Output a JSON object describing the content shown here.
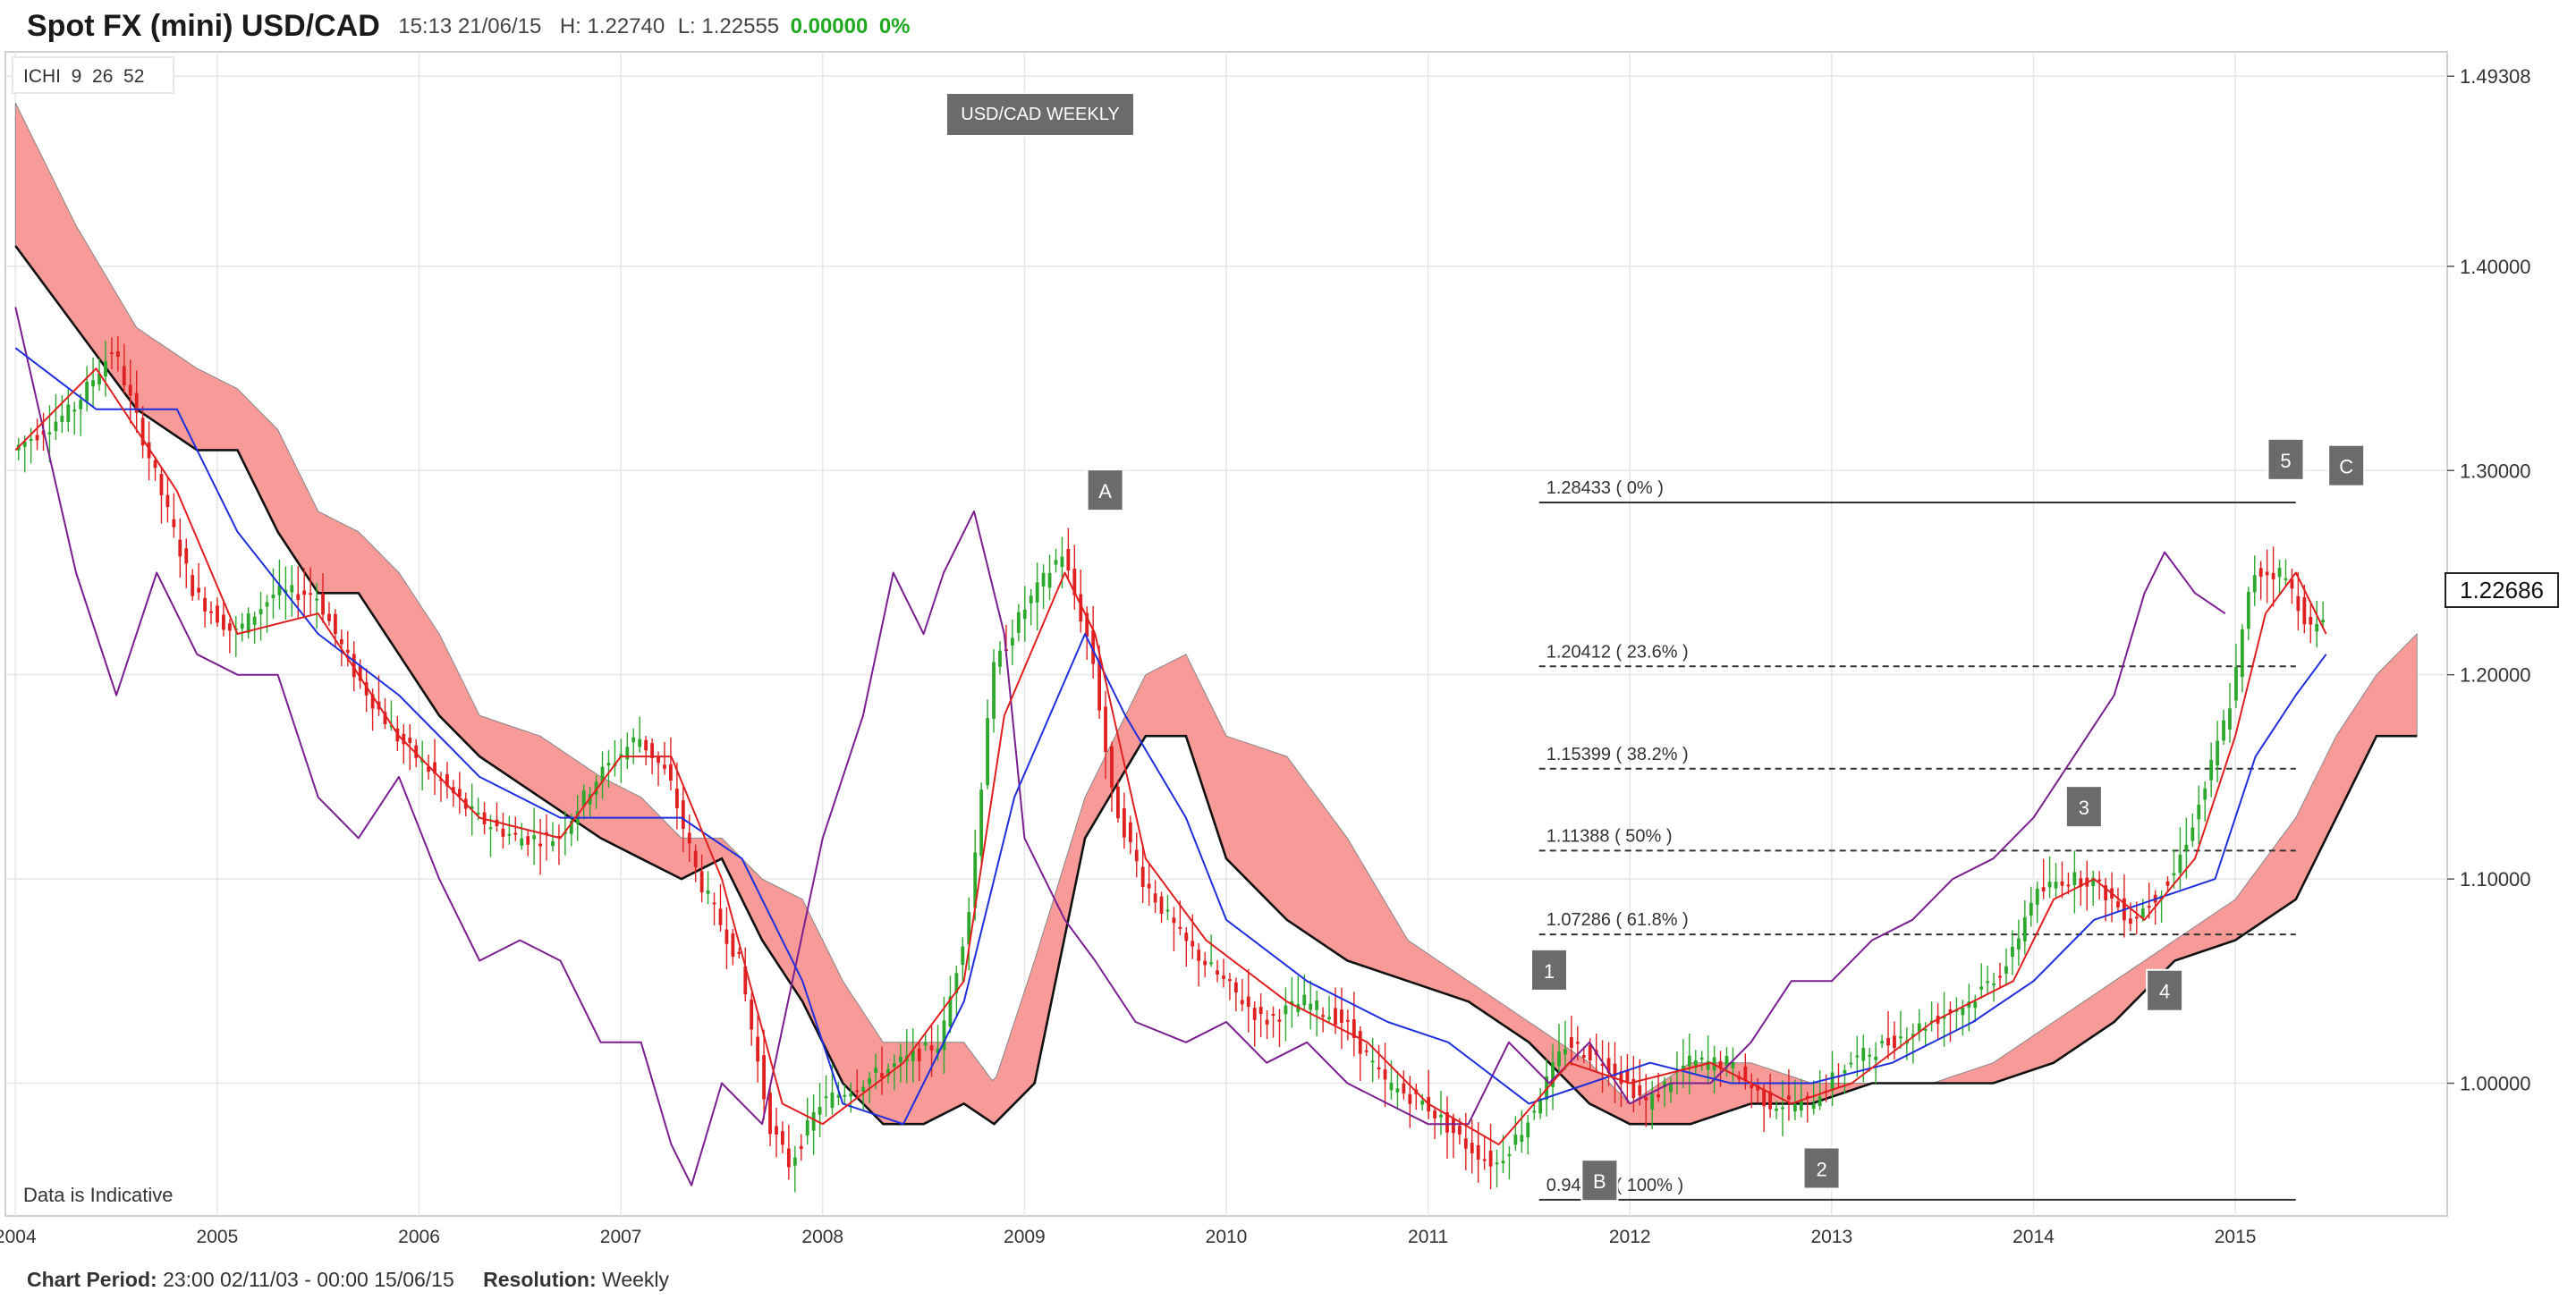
{
  "header": {
    "title": "Spot FX (mini) USD/CAD",
    "datetime": "15:13 21/06/15",
    "high": "H: 1.22740",
    "low": "L: 1.22555",
    "change": "0.00000",
    "change_pct": "0%"
  },
  "indicator_label": "ICHI  9  26  52",
  "chart_label": "USD/CAD WEEKLY",
  "indicative_note": "Data is Indicative",
  "current_price": "1.22686",
  "footer": {
    "period_label": "Chart Period:",
    "period_value": "23:00 02/11/03 - 00:00 15/06/15",
    "resolution_label": "Resolution:",
    "resolution_value": "Weekly"
  },
  "colors": {
    "up_candle": "#2ca82c",
    "down_candle": "#e02020",
    "tenkan": "#e02020",
    "kijun": "#1f2fdc",
    "chikou": "#7a1f8f",
    "cloud_bear": "#f79a98",
    "cloud_bull": "#6fd36f",
    "span_b": "#111111",
    "wave_box": "#6b6b6b"
  },
  "chart_data": {
    "type": "candlestick",
    "title": "USD/CAD WEEKLY",
    "ylim": [
      0.935,
      1.505
    ],
    "xlim": [
      2003.95,
      2016.05
    ],
    "x_ticks": [
      "2004",
      "2005",
      "2006",
      "2007",
      "2008",
      "2009",
      "2010",
      "2011",
      "2012",
      "2013",
      "2014",
      "2015"
    ],
    "y_ticks": [
      "1.49308",
      "1.40000",
      "1.30000",
      "1.20000",
      "1.10000",
      "1.00000"
    ],
    "y_tick_values": [
      1.49308,
      1.4,
      1.3,
      1.2,
      1.1,
      1.0
    ],
    "price_path": [
      [
        2004.0,
        1.31
      ],
      [
        2004.3,
        1.33
      ],
      [
        2004.5,
        1.36
      ],
      [
        2004.7,
        1.3
      ],
      [
        2004.9,
        1.24
      ],
      [
        2005.1,
        1.22
      ],
      [
        2005.3,
        1.24
      ],
      [
        2005.5,
        1.24
      ],
      [
        2005.7,
        1.2
      ],
      [
        2005.9,
        1.17
      ],
      [
        2006.1,
        1.15
      ],
      [
        2006.3,
        1.13
      ],
      [
        2006.5,
        1.12
      ],
      [
        2006.7,
        1.12
      ],
      [
        2006.9,
        1.15
      ],
      [
        2007.1,
        1.17
      ],
      [
        2007.25,
        1.15
      ],
      [
        2007.4,
        1.1
      ],
      [
        2007.6,
        1.06
      ],
      [
        2007.75,
        0.98
      ],
      [
        2007.85,
        0.96
      ],
      [
        2008.0,
        0.99
      ],
      [
        2008.2,
        1.0
      ],
      [
        2008.4,
        1.01
      ],
      [
        2008.6,
        1.02
      ],
      [
        2008.75,
        1.09
      ],
      [
        2008.85,
        1.2
      ],
      [
        2009.0,
        1.23
      ],
      [
        2009.2,
        1.26
      ],
      [
        2009.35,
        1.21
      ],
      [
        2009.45,
        1.14
      ],
      [
        2009.6,
        1.1
      ],
      [
        2009.8,
        1.07
      ],
      [
        2010.0,
        1.05
      ],
      [
        2010.2,
        1.03
      ],
      [
        2010.4,
        1.04
      ],
      [
        2010.6,
        1.03
      ],
      [
        2010.8,
        1.0
      ],
      [
        2011.0,
        0.99
      ],
      [
        2011.2,
        0.97
      ],
      [
        2011.35,
        0.96
      ],
      [
        2011.5,
        0.98
      ],
      [
        2011.7,
        1.02
      ],
      [
        2011.9,
        1.01
      ],
      [
        2012.1,
        0.99
      ],
      [
        2012.3,
        1.01
      ],
      [
        2012.5,
        1.01
      ],
      [
        2012.7,
        0.99
      ],
      [
        2012.9,
        0.99
      ],
      [
        2013.1,
        1.01
      ],
      [
        2013.3,
        1.02
      ],
      [
        2013.5,
        1.03
      ],
      [
        2013.7,
        1.04
      ],
      [
        2013.9,
        1.06
      ],
      [
        2014.0,
        1.09
      ],
      [
        2014.15,
        1.1
      ],
      [
        2014.3,
        1.1
      ],
      [
        2014.5,
        1.08
      ],
      [
        2014.7,
        1.1
      ],
      [
        2014.85,
        1.14
      ],
      [
        2015.0,
        1.19
      ],
      [
        2015.1,
        1.25
      ],
      [
        2015.25,
        1.25
      ],
      [
        2015.4,
        1.22
      ],
      [
        2015.45,
        1.227
      ]
    ],
    "tenkan": [
      [
        2004.0,
        1.31
      ],
      [
        2004.4,
        1.35
      ],
      [
        2004.8,
        1.29
      ],
      [
        2005.1,
        1.22
      ],
      [
        2005.5,
        1.23
      ],
      [
        2005.9,
        1.17
      ],
      [
        2006.3,
        1.13
      ],
      [
        2006.7,
        1.12
      ],
      [
        2007.0,
        1.16
      ],
      [
        2007.25,
        1.16
      ],
      [
        2007.5,
        1.1
      ],
      [
        2007.8,
        0.99
      ],
      [
        2008.0,
        0.98
      ],
      [
        2008.4,
        1.01
      ],
      [
        2008.7,
        1.05
      ],
      [
        2008.9,
        1.18
      ],
      [
        2009.2,
        1.25
      ],
      [
        2009.35,
        1.22
      ],
      [
        2009.6,
        1.11
      ],
      [
        2009.9,
        1.07
      ],
      [
        2010.3,
        1.04
      ],
      [
        2010.7,
        1.02
      ],
      [
        2011.0,
        0.99
      ],
      [
        2011.35,
        0.97
      ],
      [
        2011.7,
        1.01
      ],
      [
        2012.0,
        1.0
      ],
      [
        2012.4,
        1.01
      ],
      [
        2012.8,
        0.99
      ],
      [
        2013.1,
        1.0
      ],
      [
        2013.5,
        1.03
      ],
      [
        2013.9,
        1.05
      ],
      [
        2014.1,
        1.09
      ],
      [
        2014.3,
        1.1
      ],
      [
        2014.55,
        1.08
      ],
      [
        2014.8,
        1.11
      ],
      [
        2015.0,
        1.17
      ],
      [
        2015.15,
        1.23
      ],
      [
        2015.3,
        1.25
      ],
      [
        2015.45,
        1.22
      ]
    ],
    "kijun": [
      [
        2004.0,
        1.36
      ],
      [
        2004.4,
        1.33
      ],
      [
        2004.8,
        1.33
      ],
      [
        2005.1,
        1.27
      ],
      [
        2005.5,
        1.22
      ],
      [
        2005.9,
        1.19
      ],
      [
        2006.3,
        1.15
      ],
      [
        2006.7,
        1.13
      ],
      [
        2007.0,
        1.13
      ],
      [
        2007.3,
        1.13
      ],
      [
        2007.6,
        1.11
      ],
      [
        2007.9,
        1.05
      ],
      [
        2008.1,
        0.99
      ],
      [
        2008.4,
        0.98
      ],
      [
        2008.7,
        1.04
      ],
      [
        2008.95,
        1.14
      ],
      [
        2009.3,
        1.22
      ],
      [
        2009.5,
        1.18
      ],
      [
        2009.8,
        1.13
      ],
      [
        2010.0,
        1.08
      ],
      [
        2010.4,
        1.05
      ],
      [
        2010.8,
        1.03
      ],
      [
        2011.1,
        1.02
      ],
      [
        2011.5,
        0.99
      ],
      [
        2011.8,
        1.0
      ],
      [
        2012.1,
        1.01
      ],
      [
        2012.5,
        1.0
      ],
      [
        2012.9,
        1.0
      ],
      [
        2013.3,
        1.01
      ],
      [
        2013.7,
        1.03
      ],
      [
        2014.0,
        1.05
      ],
      [
        2014.3,
        1.08
      ],
      [
        2014.6,
        1.09
      ],
      [
        2014.9,
        1.1
      ],
      [
        2015.1,
        1.16
      ],
      [
        2015.3,
        1.19
      ],
      [
        2015.45,
        1.21
      ]
    ],
    "chikou": [
      [
        2004.0,
        1.38
      ],
      [
        2004.3,
        1.25
      ],
      [
        2004.5,
        1.19
      ],
      [
        2004.7,
        1.25
      ],
      [
        2004.9,
        1.21
      ],
      [
        2005.1,
        1.2
      ],
      [
        2005.3,
        1.2
      ],
      [
        2005.5,
        1.14
      ],
      [
        2005.7,
        1.12
      ],
      [
        2005.9,
        1.15
      ],
      [
        2006.1,
        1.1
      ],
      [
        2006.3,
        1.06
      ],
      [
        2006.5,
        1.07
      ],
      [
        2006.7,
        1.06
      ],
      [
        2006.9,
        1.02
      ],
      [
        2007.1,
        1.02
      ],
      [
        2007.25,
        0.97
      ],
      [
        2007.35,
        0.95
      ],
      [
        2007.5,
        1.0
      ],
      [
        2007.7,
        0.98
      ],
      [
        2007.85,
        1.05
      ],
      [
        2008.0,
        1.12
      ],
      [
        2008.2,
        1.18
      ],
      [
        2008.35,
        1.25
      ],
      [
        2008.5,
        1.22
      ],
      [
        2008.6,
        1.25
      ],
      [
        2008.75,
        1.28
      ],
      [
        2008.9,
        1.22
      ],
      [
        2009.0,
        1.12
      ],
      [
        2009.2,
        1.08
      ],
      [
        2009.35,
        1.06
      ],
      [
        2009.55,
        1.03
      ],
      [
        2009.8,
        1.02
      ],
      [
        2010.0,
        1.03
      ],
      [
        2010.2,
        1.01
      ],
      [
        2010.4,
        1.02
      ],
      [
        2010.6,
        1.0
      ],
      [
        2010.8,
        0.99
      ],
      [
        2011.0,
        0.98
      ],
      [
        2011.2,
        0.98
      ],
      [
        2011.4,
        1.02
      ],
      [
        2011.6,
        1.0
      ],
      [
        2011.8,
        1.02
      ],
      [
        2012.0,
        0.99
      ],
      [
        2012.2,
        1.0
      ],
      [
        2012.4,
        1.0
      ],
      [
        2012.6,
        1.02
      ],
      [
        2012.8,
        1.05
      ],
      [
        2013.0,
        1.05
      ],
      [
        2013.2,
        1.07
      ],
      [
        2013.4,
        1.08
      ],
      [
        2013.6,
        1.1
      ],
      [
        2013.8,
        1.11
      ],
      [
        2014.0,
        1.13
      ],
      [
        2014.2,
        1.16
      ],
      [
        2014.4,
        1.19
      ],
      [
        2014.55,
        1.24
      ],
      [
        2014.65,
        1.26
      ],
      [
        2014.8,
        1.24
      ],
      [
        2014.95,
        1.23
      ]
    ],
    "span_a": [
      [
        2004.0,
        1.48
      ],
      [
        2004.3,
        1.42
      ],
      [
        2004.6,
        1.37
      ],
      [
        2004.9,
        1.35
      ],
      [
        2005.1,
        1.34
      ],
      [
        2005.3,
        1.32
      ],
      [
        2005.5,
        1.28
      ],
      [
        2005.7,
        1.27
      ],
      [
        2005.9,
        1.25
      ],
      [
        2006.1,
        1.22
      ],
      [
        2006.3,
        1.18
      ],
      [
        2006.6,
        1.17
      ],
      [
        2006.9,
        1.15
      ],
      [
        2007.1,
        1.14
      ],
      [
        2007.3,
        1.12
      ],
      [
        2007.5,
        1.12
      ],
      [
        2007.7,
        1.1
      ],
      [
        2007.9,
        1.09
      ],
      [
        2008.1,
        1.05
      ],
      [
        2008.3,
        1.02
      ],
      [
        2008.5,
        1.02
      ],
      [
        2008.7,
        1.02
      ],
      [
        2008.85,
        1.0
      ],
      [
        2009.05,
        1.06
      ],
      [
        2009.3,
        1.14
      ],
      [
        2009.6,
        1.2
      ],
      [
        2009.8,
        1.21
      ],
      [
        2010.0,
        1.17
      ],
      [
        2010.3,
        1.16
      ],
      [
        2010.6,
        1.12
      ],
      [
        2010.9,
        1.07
      ],
      [
        2011.2,
        1.05
      ],
      [
        2011.5,
        1.03
      ],
      [
        2011.8,
        1.01
      ],
      [
        2012.0,
        0.99
      ],
      [
        2012.3,
        1.01
      ],
      [
        2012.6,
        1.01
      ],
      [
        2012.9,
        1.0
      ],
      [
        2013.2,
        1.0
      ],
      [
        2013.5,
        1.0
      ],
      [
        2013.8,
        1.01
      ],
      [
        2014.1,
        1.03
      ],
      [
        2014.4,
        1.05
      ],
      [
        2014.7,
        1.07
      ],
      [
        2015.0,
        1.09
      ],
      [
        2015.3,
        1.13
      ],
      [
        2015.5,
        1.17
      ],
      [
        2015.7,
        1.2
      ],
      [
        2015.9,
        1.22
      ]
    ],
    "span_b": [
      [
        2004.0,
        1.41
      ],
      [
        2004.3,
        1.37
      ],
      [
        2004.6,
        1.33
      ],
      [
        2004.9,
        1.31
      ],
      [
        2005.1,
        1.31
      ],
      [
        2005.3,
        1.27
      ],
      [
        2005.5,
        1.24
      ],
      [
        2005.7,
        1.24
      ],
      [
        2005.9,
        1.21
      ],
      [
        2006.1,
        1.18
      ],
      [
        2006.3,
        1.16
      ],
      [
        2006.6,
        1.14
      ],
      [
        2006.9,
        1.12
      ],
      [
        2007.1,
        1.11
      ],
      [
        2007.3,
        1.1
      ],
      [
        2007.5,
        1.11
      ],
      [
        2007.7,
        1.07
      ],
      [
        2007.9,
        1.04
      ],
      [
        2008.1,
        1.0
      ],
      [
        2008.3,
        0.98
      ],
      [
        2008.5,
        0.98
      ],
      [
        2008.7,
        0.99
      ],
      [
        2008.85,
        0.98
      ],
      [
        2009.05,
        1.0
      ],
      [
        2009.3,
        1.12
      ],
      [
        2009.6,
        1.17
      ],
      [
        2009.8,
        1.17
      ],
      [
        2010.0,
        1.11
      ],
      [
        2010.3,
        1.08
      ],
      [
        2010.6,
        1.06
      ],
      [
        2010.9,
        1.05
      ],
      [
        2011.2,
        1.04
      ],
      [
        2011.5,
        1.02
      ],
      [
        2011.8,
        0.99
      ],
      [
        2012.0,
        0.98
      ],
      [
        2012.3,
        0.98
      ],
      [
        2012.6,
        0.99
      ],
      [
        2012.9,
        0.99
      ],
      [
        2013.2,
        1.0
      ],
      [
        2013.5,
        1.0
      ],
      [
        2013.8,
        1.0
      ],
      [
        2014.1,
        1.01
      ],
      [
        2014.4,
        1.03
      ],
      [
        2014.7,
        1.06
      ],
      [
        2015.0,
        1.07
      ],
      [
        2015.3,
        1.09
      ],
      [
        2015.5,
        1.13
      ],
      [
        2015.7,
        1.17
      ],
      [
        2015.9,
        1.17
      ]
    ],
    "fib_levels": [
      {
        "value": 1.28433,
        "label": "1.28433 ( 0% )",
        "style": "solid"
      },
      {
        "value": 1.20412,
        "label": "1.20412 ( 23.6% )",
        "style": "dashed"
      },
      {
        "value": 1.15399,
        "label": "1.15399 ( 38.2% )",
        "style": "dashed"
      },
      {
        "value": 1.11388,
        "label": "1.11388 ( 50% )",
        "style": "dashed"
      },
      {
        "value": 1.07286,
        "label": "1.07286 ( 61.8% )",
        "style": "dashed"
      },
      {
        "value": 0.94292,
        "label": "0.94292 ( 100% )",
        "style": "solid"
      }
    ],
    "fib_x_range": [
      2011.55,
      2015.3
    ],
    "wave_labels": [
      {
        "text": "A",
        "x": 2009.4,
        "y": 1.29
      },
      {
        "text": "1",
        "x": 2011.6,
        "y": 1.055
      },
      {
        "text": "B",
        "x": 2011.85,
        "y": 0.952
      },
      {
        "text": "2",
        "x": 2012.95,
        "y": 0.958
      },
      {
        "text": "3",
        "x": 2014.25,
        "y": 1.135
      },
      {
        "text": "4",
        "x": 2014.65,
        "y": 1.045
      },
      {
        "text": "5",
        "x": 2015.25,
        "y": 1.305
      },
      {
        "text": "C",
        "x": 2015.55,
        "y": 1.302
      }
    ]
  }
}
